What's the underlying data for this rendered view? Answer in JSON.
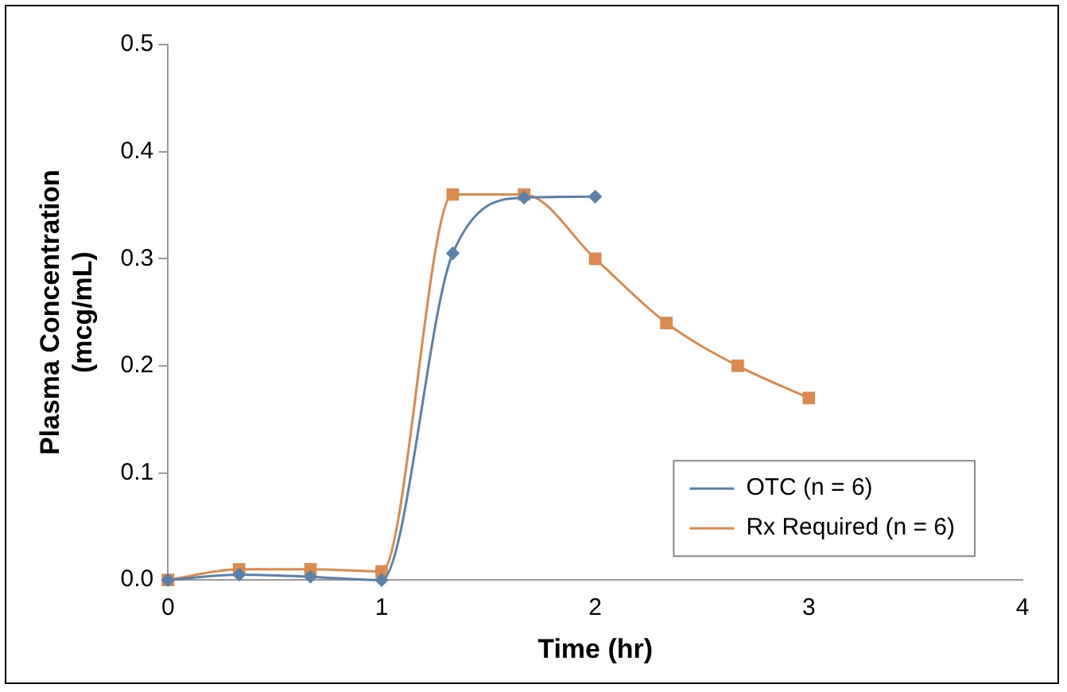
{
  "chart_data": {
    "type": "line",
    "xlabel": "Time (hr)",
    "ylabel": "Plasma Concentration\n(mcg/mL)",
    "xlim": [
      0,
      4
    ],
    "xticks": [
      0,
      1,
      2,
      3,
      4
    ],
    "ylim": [
      0,
      0.5
    ],
    "yticks": [
      {
        "value": 0,
        "label": "0.0"
      },
      {
        "value": 0.1,
        "label": "0.1"
      },
      {
        "value": 0.2,
        "label": "0.2"
      },
      {
        "value": 0.3,
        "label": "0.3"
      },
      {
        "value": 0.4,
        "label": "0.4"
      },
      {
        "value": 0.5,
        "label": "0.5"
      }
    ],
    "grid": false,
    "legend": "bottom right",
    "line_style": "solid",
    "series": [
      {
        "name": "OTC (n = 6)",
        "color": "#5a80aa",
        "marker": "diamond",
        "x": [
          0,
          0.333,
          0.667,
          1,
          1.333,
          1.667,
          2
        ],
        "values": [
          0,
          0.005,
          0.003,
          0,
          0.305,
          0.357,
          0.358
        ]
      },
      {
        "name": "Rx Required (n = 6)",
        "color": "#d98a4c",
        "marker": "square",
        "x": [
          0,
          0.333,
          0.667,
          1,
          1.333,
          1.667,
          2,
          2.333,
          2.667,
          3
        ],
        "values": [
          0,
          0.01,
          0.01,
          0.008,
          0.36,
          0.36,
          0.3,
          0.24,
          0.2,
          0.17
        ]
      }
    ]
  }
}
